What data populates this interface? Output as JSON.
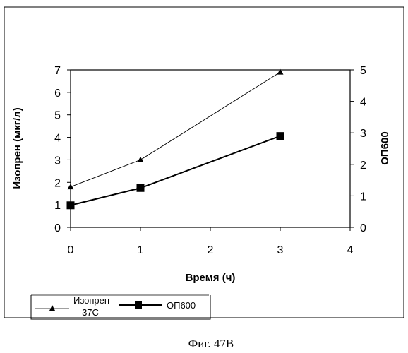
{
  "chart_data": {
    "type": "line",
    "xlabel": "Время (ч)",
    "ylabel_left": "Изопрен (мкг/л)",
    "ylabel_right": "ОП600",
    "xlim": [
      0,
      4
    ],
    "ylim_left": [
      0,
      7
    ],
    "ylim_right": [
      0,
      5
    ],
    "x_ticks": [
      "0",
      "1",
      "2",
      "3",
      "4"
    ],
    "y_left_ticks": [
      "0",
      "1",
      "2",
      "3",
      "4",
      "5",
      "6",
      "7"
    ],
    "y_right_ticks": [
      "0",
      "1",
      "2",
      "3",
      "4",
      "5"
    ],
    "grid": false,
    "legend_position": "bottom",
    "series": [
      {
        "name": "Изопрен 37С",
        "name_lines": [
          "Изопрен",
          "37С"
        ],
        "axis": "left",
        "marker": "triangle",
        "x": [
          0,
          1,
          3
        ],
        "y": [
          1.8,
          3.0,
          6.9
        ]
      },
      {
        "name": "ОП600",
        "name_lines": [
          "ОП600"
        ],
        "axis": "right",
        "marker": "square",
        "x": [
          0,
          1,
          3
        ],
        "y": [
          0.7,
          1.25,
          2.9
        ]
      }
    ]
  },
  "caption": "Фиг. 47В"
}
